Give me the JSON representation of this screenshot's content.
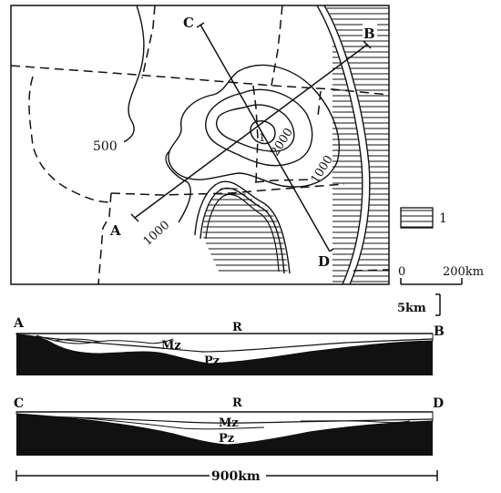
{
  "map": {
    "points": {
      "a": "A",
      "b": "B",
      "c": "C",
      "d": "D"
    },
    "contours": {
      "c500": "500",
      "c1000_left": "1000",
      "c1000_right": "1000",
      "c2000": "2000"
    },
    "inner_mark": "1"
  },
  "legend": {
    "item_label": "1"
  },
  "map_scale": {
    "zero": "0",
    "end": "200km"
  },
  "section_ab": {
    "left": "A",
    "right": "B",
    "strata": {
      "r": "R",
      "mz": "Mz",
      "pz": "Pz"
    }
  },
  "section_cd": {
    "left": "C",
    "right": "D",
    "strata": {
      "r": "R",
      "mz": "Mz",
      "pz": "Pz"
    }
  },
  "vertical_scale": "5km",
  "horizontal_scale": "900km",
  "colors": {
    "ink": "#111111",
    "paper": "#ffffff"
  }
}
